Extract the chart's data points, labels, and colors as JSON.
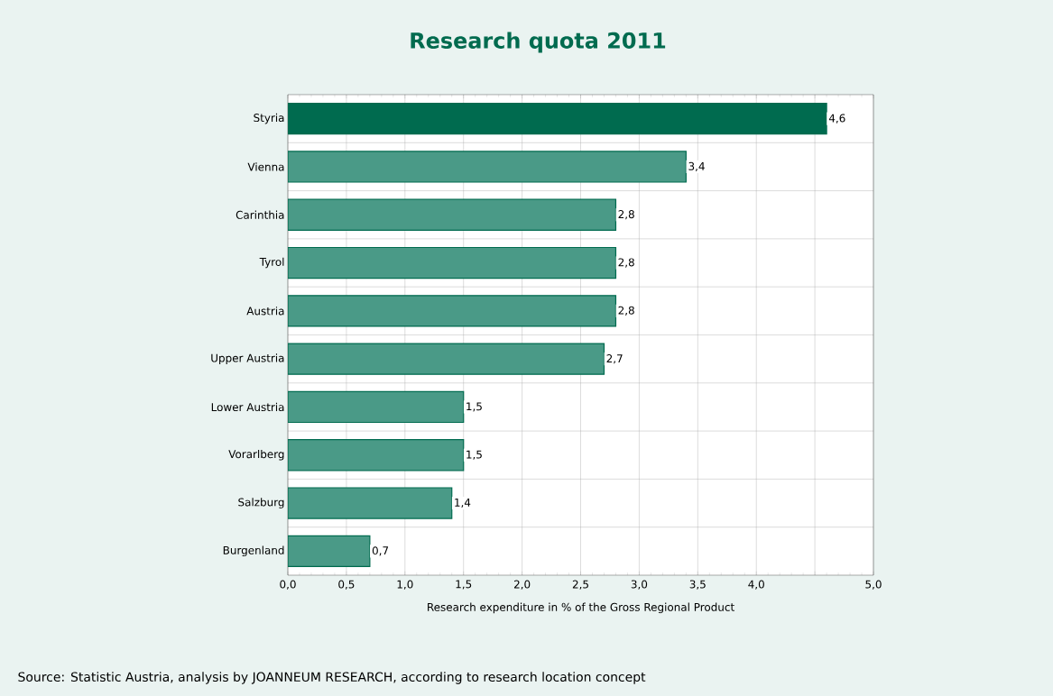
{
  "chart_data": {
    "type": "bar",
    "orientation": "horizontal",
    "title": "Research quota 2011",
    "xlabel": "Research expenditure in % of the Gross Regional Product",
    "categories": [
      "Styria",
      "Vienna",
      "Carinthia",
      "Tyrol",
      "Austria",
      "Upper Austria",
      "Lower Austria",
      "Vorarlberg",
      "Salzburg",
      "Burgenland"
    ],
    "values": [
      4.6,
      3.4,
      2.8,
      2.8,
      2.8,
      2.7,
      1.5,
      1.5,
      1.4,
      0.7
    ],
    "value_labels": [
      "4,6",
      "3,4",
      "2,8",
      "2,8",
      "2,8",
      "2,7",
      "1,5",
      "1,5",
      "1,4",
      "0,7"
    ],
    "colors": [
      "#006b4f",
      "#4a9a87",
      "#4a9a87",
      "#4a9a87",
      "#4a9a87",
      "#4a9a87",
      "#4a9a87",
      "#4a9a87",
      "#4a9a87",
      "#4a9a87"
    ],
    "xlim": [
      0,
      5
    ],
    "xticks": [
      {
        "value": 0,
        "label": "0,0"
      },
      {
        "value": 0.5,
        "label": "0,5"
      },
      {
        "value": 1,
        "label": "1,0"
      },
      {
        "value": 1.5,
        "label": "1,5"
      },
      {
        "value": 2,
        "label": "2,0"
      },
      {
        "value": 2.5,
        "label": "2,5"
      },
      {
        "value": 3,
        "label": "3,0"
      },
      {
        "value": 3.5,
        "label": "3,5"
      },
      {
        "value": 4,
        "label": "4,0"
      },
      {
        "value": 4.5,
        "label": null
      },
      {
        "value": 5,
        "label": "5,0"
      }
    ],
    "grid": true,
    "annotations": [
      "Source: Statistic Austria, analysis by JOANNEUM RESEARCH, according to research location concept"
    ]
  }
}
